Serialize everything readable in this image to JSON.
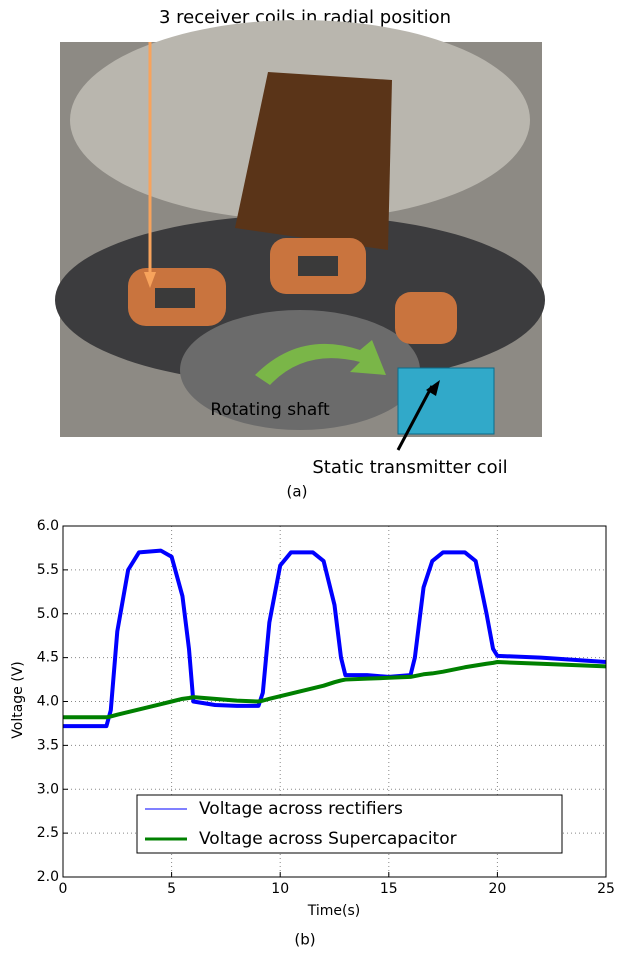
{
  "figure": {
    "photo_title": "3 receiver coils in radial position",
    "shaft_label": "Rotating shaft",
    "transmitter_label": "Static transmitter coil",
    "panel_a": "(a)",
    "panel_b": "(b)"
  },
  "chart_data": {
    "type": "line",
    "xlabel": "Time(s)",
    "ylabel": "Voltage (V)",
    "x": [
      0,
      2,
      2.2,
      2.5,
      3,
      3.5,
      4.5,
      5,
      5.5,
      5.8,
      6,
      7,
      8,
      9,
      9.2,
      9.5,
      10,
      10.5,
      11.5,
      12,
      12.5,
      12.8,
      13,
      14,
      15,
      16,
      16.2,
      16.6,
      17,
      17.5,
      18.5,
      19,
      19.5,
      19.8,
      20,
      22,
      25
    ],
    "series": [
      {
        "name": "Voltage across rectifiers",
        "color": "#0000ff",
        "values": [
          3.72,
          3.72,
          3.9,
          4.8,
          5.5,
          5.7,
          5.72,
          5.65,
          5.2,
          4.6,
          4.0,
          3.96,
          3.95,
          3.95,
          4.1,
          4.9,
          5.55,
          5.7,
          5.7,
          5.6,
          5.1,
          4.5,
          4.3,
          4.3,
          4.28,
          4.3,
          4.5,
          5.3,
          5.6,
          5.7,
          5.7,
          5.6,
          5.0,
          4.6,
          4.52,
          4.5,
          4.45
        ]
      },
      {
        "name": "Voltage across Supercapacitor",
        "color": "#008000",
        "values": [
          3.82,
          3.82,
          3.83,
          3.85,
          3.88,
          3.91,
          3.97,
          4.0,
          4.03,
          4.04,
          4.05,
          4.03,
          4.01,
          4.0,
          4.01,
          4.03,
          4.06,
          4.09,
          4.15,
          4.18,
          4.22,
          4.24,
          4.25,
          4.26,
          4.27,
          4.28,
          4.29,
          4.31,
          4.32,
          4.34,
          4.39,
          4.41,
          4.43,
          4.44,
          4.45,
          4.43,
          4.4
        ]
      }
    ],
    "xlim": [
      0,
      25
    ],
    "xticks": [
      0,
      5,
      10,
      15,
      20,
      25
    ],
    "ylim": [
      2,
      6
    ],
    "yticks": [
      {
        "value": 2,
        "label": "2.0"
      },
      {
        "value": 2.5,
        "label": "2.5"
      },
      {
        "value": 3,
        "label": "3.0"
      },
      {
        "value": 3.5,
        "label": "3.5"
      },
      {
        "value": 4,
        "label": "4.0"
      },
      {
        "value": 4.5,
        "label": "4.5"
      },
      {
        "value": 5,
        "label": "5.0"
      },
      {
        "value": 5.5,
        "label": "5.5"
      },
      {
        "value": 6,
        "label": "6.0"
      }
    ],
    "grid": true,
    "legend": "lower center"
  }
}
